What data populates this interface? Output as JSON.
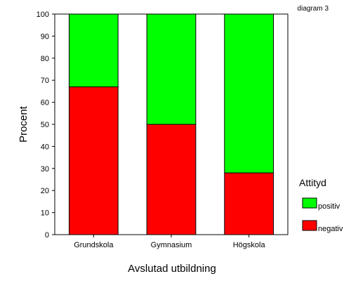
{
  "header": {
    "label": "diagram 3"
  },
  "chart_data": {
    "type": "bar",
    "stacked": true,
    "categories": [
      "Grundskola",
      "Gymnasium",
      "Högskola"
    ],
    "series": [
      {
        "name": "negativ",
        "color": "#ff0000",
        "values": [
          67,
          50,
          28
        ]
      },
      {
        "name": "positiv",
        "color": "#00ff00",
        "values": [
          33,
          50,
          72
        ]
      }
    ],
    "xlabel": "Avslutad utbildning",
    "ylabel": "Procent",
    "ylim": [
      0,
      100
    ],
    "yticks": [
      0,
      10,
      20,
      30,
      40,
      50,
      60,
      70,
      80,
      90,
      100
    ],
    "grid": false,
    "legend": {
      "title": "Attityd",
      "position": "right",
      "items": [
        {
          "label": "positiv",
          "color": "#00ff00"
        },
        {
          "label": "negativ",
          "color": "#ff0000"
        }
      ]
    }
  }
}
